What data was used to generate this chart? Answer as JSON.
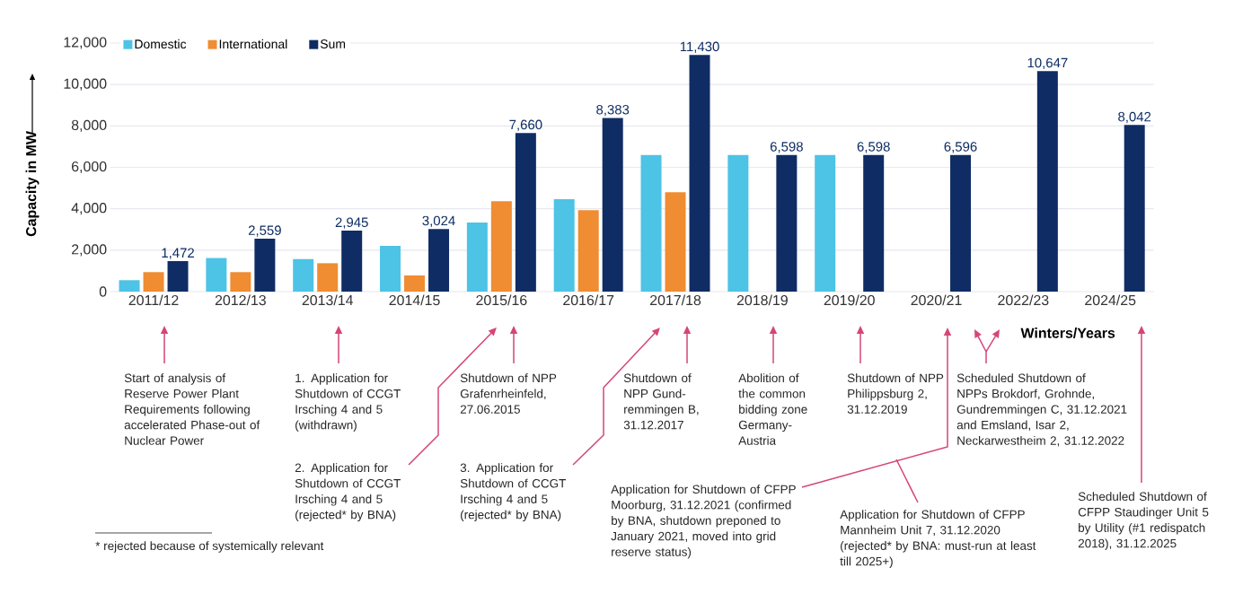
{
  "chart_data": {
    "type": "bar",
    "categories": [
      "2011/12",
      "2012/13",
      "2013/14",
      "2014/15",
      "2015/16",
      "2016/17",
      "2017/18",
      "2018/19",
      "2019/20",
      "2020/21",
      "2022/23",
      "2024/25"
    ],
    "series": [
      {
        "name": "Domestic",
        "color": "#4dc3e6",
        "values": [
          550,
          1620,
          1570,
          2210,
          3330,
          4460,
          6600,
          6600,
          6600,
          null,
          null,
          null
        ]
      },
      {
        "name": "International",
        "color": "#f08c32",
        "values": [
          940,
          940,
          1370,
          780,
          4360,
          3930,
          4800,
          null,
          null,
          null,
          null,
          null
        ]
      },
      {
        "name": "Sum",
        "color": "#0f2d64",
        "values": [
          1472,
          2559,
          2945,
          3024,
          7660,
          8383,
          11430,
          6598,
          6598,
          6596,
          10647,
          8042
        ],
        "value_labels": [
          "1,472",
          "2,559",
          "2,945",
          "3,024",
          "7,660",
          "8,383",
          "11,430",
          "6,598",
          "6,598",
          "6,596",
          "10,647",
          "8,042"
        ]
      }
    ],
    "xlabel": "Winters/Years",
    "ylabel": "Capacity in MW",
    "ylim": [
      0,
      12000
    ],
    "yticks": [
      0,
      {
        "value": 2000,
        "label": "2,000"
      },
      {
        "value": 4000,
        "label": "4,000"
      },
      {
        "value": 6000,
        "label": "6,000"
      },
      {
        "value": 8000,
        "label": "8,000"
      },
      {
        "value": 10000,
        "label": "10,000"
      },
      {
        "value": 12000,
        "label": "12,000"
      }
    ],
    "grid": "y",
    "legend": "top left",
    "annotations": [
      "Start of analysis of Reserve Power Plant Requirements following accelerated Phase-out of Nuclear Power",
      "1. Application for Shutdown of CCGT Irsching 4 and 5 (withdrawn)",
      "2. Application for Shutdown of CCGT Irsching 4 and 5 (rejected* by BNA)",
      "Shutdown of NPP Grafenrheinfeld, 27.06.2015",
      "3. Application for Shutdown of CCGT Irsching 4 and 5 (rejected* by BNA)",
      "Shutdown of NPP Gund-remmingen B, 31.12.2017",
      "Abolition of the common bidding zone Germany-Austria",
      "Shutdown of NPP Philippsburg 2, 31.12.2019",
      "Scheduled Shutdown of NPPs Brokdorf, Grohnde, Gundremmingen C, 31.12.2021 and Emsland, Isar 2, Neckarwestheim 2, 31.12.2022",
      "Application for Shutdown of CFPP Moorburg, 31.12.2021 (confirmed by BNA, shutdown preponed to January 2021, moved into grid reserve status)",
      "Application for Shutdown of CFPP Mannheim Unit 7, 31.12.2020 (rejected* by BNA: must-run at least till 2025+)",
      "Scheduled Shutdown of CFPP Staudinger Unit 5 by Utility (#1 redispatch 2018), 31.12.2025",
      "* rejected because of systemically relevant"
    ]
  }
}
